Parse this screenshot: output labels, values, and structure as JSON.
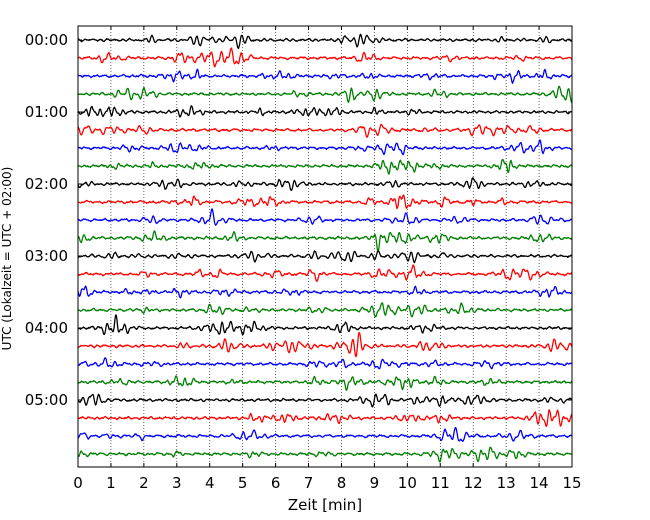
{
  "chart_data": {
    "type": "line",
    "title": "",
    "xlabel": "Zeit  [min]",
    "ylabel": "UTC (Lokalzeit = UTC + 02:00)",
    "xlim": [
      0,
      15
    ],
    "x_ticks": [
      0,
      1,
      2,
      3,
      4,
      5,
      6,
      7,
      8,
      9,
      10,
      11,
      12,
      13,
      14,
      15
    ],
    "x_tick_labels": [
      "0",
      "1",
      "2",
      "3",
      "4",
      "5",
      "6",
      "7",
      "8",
      "9",
      "10",
      "11",
      "12",
      "13",
      "14",
      "15"
    ],
    "y_tick_labels": [
      "00:00",
      "01:00",
      "02:00",
      "03:00",
      "04:00",
      "05:00"
    ],
    "trace_interval_min": 15,
    "trace_colors": [
      "#000000",
      "#ff0000",
      "#0000ff",
      "#008000"
    ],
    "grid_x": true,
    "grid_x_style": "dotted",
    "traces": [
      {
        "start": "00:00",
        "color": "#000000"
      },
      {
        "start": "00:15",
        "color": "#ff0000"
      },
      {
        "start": "00:30",
        "color": "#0000ff"
      },
      {
        "start": "00:45",
        "color": "#008000"
      },
      {
        "start": "01:00",
        "color": "#000000"
      },
      {
        "start": "01:15",
        "color": "#ff0000"
      },
      {
        "start": "01:30",
        "color": "#0000ff"
      },
      {
        "start": "01:45",
        "color": "#008000"
      },
      {
        "start": "02:00",
        "color": "#000000"
      },
      {
        "start": "02:15",
        "color": "#ff0000"
      },
      {
        "start": "02:30",
        "color": "#0000ff"
      },
      {
        "start": "02:45",
        "color": "#008000"
      },
      {
        "start": "03:00",
        "color": "#000000"
      },
      {
        "start": "03:15",
        "color": "#ff0000"
      },
      {
        "start": "03:30",
        "color": "#0000ff"
      },
      {
        "start": "03:45",
        "color": "#008000"
      },
      {
        "start": "04:00",
        "color": "#000000"
      },
      {
        "start": "04:15",
        "color": "#ff0000"
      },
      {
        "start": "04:30",
        "color": "#0000ff"
      },
      {
        "start": "04:45",
        "color": "#008000"
      },
      {
        "start": "05:00",
        "color": "#000000"
      },
      {
        "start": "05:15",
        "color": "#ff0000"
      },
      {
        "start": "05:30",
        "color": "#0000ff"
      },
      {
        "start": "05:45",
        "color": "#008000"
      }
    ]
  }
}
